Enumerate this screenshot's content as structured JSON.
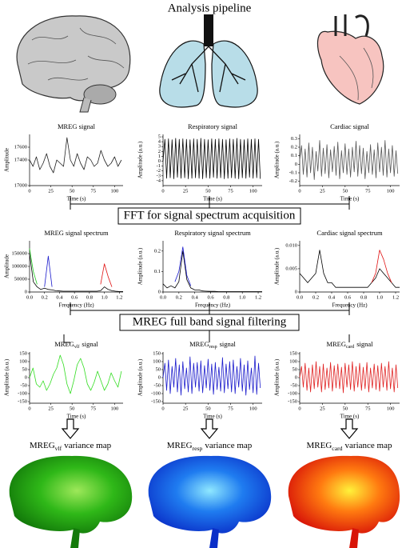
{
  "title": "Analysis pipeline",
  "steps": [
    "FFT for signal spectrum acquisition",
    "MREG full band signal filtering"
  ],
  "maps": [
    {
      "label": [
        "MREG",
        "vlf",
        "variance map"
      ]
    },
    {
      "label": [
        "MREG",
        "resp",
        "variance map"
      ]
    },
    {
      "label": [
        "MREG",
        "card",
        "variance map"
      ]
    }
  ],
  "chart_data": [
    {
      "type": "line",
      "title": "MREG signal",
      "xlabel": "Time (s)",
      "ylabel": "Amplitude",
      "x": [
        0,
        4,
        8,
        12,
        16,
        20,
        24,
        28,
        32,
        36,
        40,
        44,
        48,
        52,
        56,
        60,
        64,
        68,
        72,
        76,
        80,
        84,
        88,
        92,
        96,
        100,
        104,
        108
      ],
      "series": [
        {
          "color": "#222222",
          "values": [
            17400,
            17300,
            17450,
            17250,
            17350,
            17500,
            17300,
            17200,
            17400,
            17350,
            17300,
            17750,
            17400,
            17300,
            17500,
            17350,
            17250,
            17450,
            17400,
            17300,
            17350,
            17550,
            17400,
            17300,
            17350,
            17450,
            17300,
            17400
          ]
        }
      ],
      "xlim": [
        0,
        110
      ],
      "xticks": [
        0,
        25,
        50,
        75,
        100
      ],
      "ylim": [
        17000,
        17800
      ],
      "yticks": [
        17000,
        17400,
        17600
      ]
    },
    {
      "type": "line",
      "title": "Respiratory signal",
      "xlabel": "Time (s)",
      "ylabel": "Amplitude (a.u.)",
      "x": [
        0,
        2,
        4,
        6,
        8,
        10,
        12,
        14,
        16,
        18,
        20,
        22,
        24,
        26,
        28,
        30,
        32,
        34,
        36,
        38,
        40,
        42,
        44,
        46,
        48,
        50,
        52,
        54,
        56,
        58,
        60,
        62,
        64,
        66,
        68,
        70,
        72,
        74,
        76,
        78,
        80,
        82,
        84,
        86,
        88,
        90,
        92,
        94,
        96,
        98,
        100,
        102,
        104,
        106,
        108
      ],
      "series": [
        {
          "color": "#000000",
          "values": [
            0,
            4.5,
            -3.5,
            4.6,
            -3.4,
            4.4,
            -3.6,
            4.7,
            -3.3,
            4.5,
            -3.5,
            4.6,
            -3.4,
            4.5,
            -3.6,
            4.4,
            -3.5,
            4.6,
            -3.4,
            4.5,
            -3.5,
            4.7,
            -3.6,
            4.5,
            -3.4,
            4.4,
            -3.5,
            4.6,
            -3.3,
            4.5,
            -3.5,
            4.6,
            -3.4,
            4.5,
            -3.6,
            4.4,
            -3.5,
            4.6,
            -3.4,
            4.5,
            -3.5,
            4.7,
            -3.6,
            4.5,
            -3.4,
            4.4,
            -3.5,
            4.6,
            -3.3,
            4.5,
            -3.5,
            4.6,
            -3.4,
            4.5,
            -3.6
          ]
        }
      ],
      "xlim": [
        0,
        110
      ],
      "xticks": [
        0,
        25,
        50,
        75,
        100
      ],
      "ylim": [
        -5,
        5.5
      ],
      "yticks": [
        -4,
        -3,
        -2,
        -1,
        0,
        1,
        2,
        3,
        4,
        5
      ]
    },
    {
      "type": "line",
      "title": "Cardiac signal",
      "xlabel": "Time (s)",
      "ylabel": "Amplitude (a.u.)",
      "x": [
        0,
        2,
        4,
        6,
        8,
        10,
        12,
        14,
        16,
        18,
        20,
        22,
        24,
        26,
        28,
        30,
        32,
        34,
        36,
        38,
        40,
        42,
        44,
        46,
        48,
        50,
        52,
        54,
        56,
        58,
        60,
        62,
        64,
        66,
        68,
        70,
        72,
        74,
        76,
        78,
        80,
        82,
        84,
        86,
        88,
        90,
        92,
        94,
        96,
        98,
        100,
        102,
        104,
        106,
        108
      ],
      "series": [
        {
          "color": "#555555",
          "values": [
            0.05,
            0.22,
            -0.12,
            0.18,
            -0.15,
            0.25,
            -0.1,
            0.2,
            -0.18,
            0.15,
            -0.08,
            0.28,
            -0.14,
            0.19,
            -0.11,
            0.23,
            -0.16,
            0.17,
            -0.09,
            0.21,
            -0.13,
            0.26,
            -0.17,
            0.16,
            -0.1,
            0.24,
            -0.12,
            0.18,
            -0.15,
            0.2,
            -0.09,
            0.27,
            -0.14,
            0.22,
            -0.11,
            0.19,
            -0.17,
            0.15,
            -0.1,
            0.23,
            -0.12,
            0.17,
            -0.16,
            0.25,
            -0.09,
            0.2,
            -0.13,
            0.28,
            -0.15,
            0.18,
            -0.1,
            0.22,
            -0.14,
            0.16,
            -0.11
          ]
        }
      ],
      "xlim": [
        0,
        110
      ],
      "xticks": [
        0,
        25,
        50,
        75,
        100
      ],
      "ylim": [
        -0.25,
        0.35
      ],
      "yticks": [
        -0.2,
        -0.1,
        0,
        0.1,
        0.2,
        0.3
      ]
    },
    {
      "type": "line",
      "title": "MREG signal spectrum",
      "xlabel": "Frequency (Hz)",
      "ylabel": "Amplitude",
      "x": [
        0,
        0.05,
        0.1,
        0.15,
        0.2,
        0.25,
        0.3,
        0.35,
        0.4,
        0.45,
        0.5,
        0.55,
        0.6,
        0.65,
        0.7,
        0.75,
        0.8,
        0.85,
        0.9,
        0.95,
        1,
        1.05,
        1.1,
        1.15,
        1.2,
        1.25
      ],
      "series": [
        {
          "color": "#000000",
          "values": [
            150000,
            40000,
            20000,
            10000,
            15000,
            10000,
            8000,
            5000,
            4000,
            3000,
            3000,
            3000,
            3000,
            3000,
            3000,
            3000,
            3000,
            3000,
            3000,
            5000,
            20000,
            10000,
            5000,
            3000,
            2000,
            2000
          ]
        },
        {
          "color": "#22cc22",
          "values": [
            170000,
            80000,
            30000,
            null,
            null,
            null,
            null,
            null,
            null,
            null,
            null,
            null,
            null,
            null,
            null,
            null,
            null,
            null,
            null,
            null,
            null,
            null,
            null,
            null,
            null,
            null
          ]
        },
        {
          "color": "#1a1acc",
          "values": [
            null,
            null,
            null,
            null,
            20000,
            140000,
            20000,
            null,
            null,
            null,
            null,
            null,
            null,
            null,
            null,
            null,
            null,
            null,
            null,
            null,
            null,
            null,
            null,
            null,
            null,
            null
          ]
        },
        {
          "color": "#e01010",
          "values": [
            null,
            null,
            null,
            null,
            null,
            null,
            null,
            null,
            null,
            null,
            null,
            null,
            null,
            null,
            null,
            null,
            null,
            null,
            null,
            30000,
            110000,
            60000,
            20000,
            null,
            null,
            null
          ]
        }
      ],
      "xlim": [
        0,
        1.25
      ],
      "xticks": [
        {
          "value": 0,
          "label": "0.0"
        },
        0.2,
        0.4,
        0.6,
        0.8,
        {
          "value": 1,
          "label": "1.0"
        },
        1.2
      ],
      "ylim": [
        0,
        200000
      ],
      "yticks": [
        0,
        50000,
        100000,
        150000
      ]
    },
    {
      "type": "line",
      "title": "Respiratory signal spectrum",
      "xlabel": "Frequency (Hz)",
      "ylabel": "Amplitude (a.u.)",
      "x": [
        0,
        0.05,
        0.1,
        0.15,
        0.2,
        0.25,
        0.3,
        0.35,
        0.4,
        0.45,
        0.5,
        0.55,
        0.6,
        0.65,
        0.7,
        0.75,
        0.8,
        0.85,
        0.9,
        0.95,
        1,
        1.05,
        1.1,
        1.15,
        1.2,
        1.25
      ],
      "series": [
        {
          "color": "#000000",
          "values": [
            0.04,
            0.02,
            0.03,
            0.02,
            0.05,
            0.2,
            0.06,
            0.02,
            0.01,
            0.01,
            0.005,
            0.004,
            0.003,
            0.003,
            0.002,
            0.002,
            0.002,
            0.002,
            0.002,
            0.002,
            0.002,
            0.002,
            0.002,
            0.002,
            0.002,
            0.002
          ]
        },
        {
          "color": "#1a1acc",
          "values": [
            null,
            null,
            null,
            0.05,
            0.1,
            0.22,
            0.08,
            0.03,
            null,
            null,
            null,
            null,
            null,
            null,
            null,
            null,
            null,
            null,
            null,
            null,
            null,
            null,
            null,
            null,
            null,
            null
          ]
        }
      ],
      "xlim": [
        0,
        1.25
      ],
      "xticks": [
        {
          "value": 0,
          "label": "0.0"
        },
        0.2,
        0.4,
        0.6,
        0.8,
        {
          "value": 1,
          "label": "1.0"
        },
        1.2
      ],
      "ylim": [
        0,
        0.25
      ],
      "yticks": [
        0,
        0.1,
        0.2
      ]
    },
    {
      "type": "line",
      "title": "Cardiac signal spectrum",
      "xlabel": "Frequency (Hz)",
      "ylabel": "Amplitude (a.u.)",
      "x": [
        0,
        0.05,
        0.1,
        0.15,
        0.2,
        0.25,
        0.3,
        0.35,
        0.4,
        0.45,
        0.5,
        0.55,
        0.6,
        0.65,
        0.7,
        0.75,
        0.8,
        0.85,
        0.9,
        0.95,
        1,
        1.05,
        1.1,
        1.15,
        1.2,
        1.25
      ],
      "series": [
        {
          "color": "#000000",
          "values": [
            0.004,
            0.003,
            0.002,
            0.003,
            0.004,
            0.009,
            0.004,
            0.002,
            0.002,
            0.001,
            0.001,
            0.001,
            0.001,
            0.001,
            0.001,
            0.001,
            0.001,
            0.001,
            0.002,
            0.003,
            0.005,
            0.004,
            0.003,
            0.002,
            0.001,
            0.001
          ]
        },
        {
          "color": "#e01010",
          "values": [
            null,
            null,
            null,
            null,
            null,
            null,
            null,
            null,
            null,
            null,
            null,
            null,
            null,
            null,
            null,
            null,
            null,
            null,
            0.002,
            0.004,
            0.009,
            0.007,
            0.004,
            0.002,
            null,
            null
          ]
        }
      ],
      "xlim": [
        0,
        1.25
      ],
      "xticks": [
        {
          "value": 0,
          "label": "0.0"
        },
        0.2,
        0.4,
        0.6,
        0.8,
        {
          "value": 1,
          "label": "1.0"
        },
        1.2
      ],
      "ylim": [
        0,
        0.011
      ],
      "yticks": [
        0,
        0.005,
        {
          "value": 0.01,
          "label": "0.010"
        }
      ]
    },
    {
      "type": "line",
      "title": [
        "MREG",
        "vlf",
        "signal"
      ],
      "xlabel": "Time (s)",
      "ylabel": "Amplitude (a.u.)",
      "x": [
        0,
        4,
        8,
        12,
        16,
        20,
        24,
        28,
        32,
        36,
        40,
        44,
        48,
        52,
        56,
        60,
        64,
        68,
        72,
        76,
        80,
        84,
        88,
        92,
        96,
        100,
        104,
        108
      ],
      "series": [
        {
          "color": "#33dd22",
          "values": [
            0,
            60,
            -40,
            -60,
            -20,
            -80,
            -40,
            20,
            60,
            140,
            80,
            -40,
            -100,
            -20,
            80,
            120,
            60,
            -40,
            -80,
            -30,
            40,
            -20,
            -80,
            -40,
            30,
            -20,
            -60,
            40
          ]
        }
      ],
      "xlim": [
        0,
        110
      ],
      "xticks": [
        0,
        25,
        50,
        75,
        100
      ],
      "ylim": [
        -160,
        160
      ],
      "yticks": [
        -150,
        -100,
        -50,
        0,
        50,
        100,
        150
      ]
    },
    {
      "type": "line",
      "title": [
        "MREG",
        "resp",
        "signal"
      ],
      "xlabel": "Time (s)",
      "ylabel": "Amplitude (a.u.)",
      "x": [
        0,
        2,
        4,
        6,
        8,
        10,
        12,
        14,
        16,
        18,
        20,
        22,
        24,
        26,
        28,
        30,
        32,
        34,
        36,
        38,
        40,
        42,
        44,
        46,
        48,
        50,
        52,
        54,
        56,
        58,
        60,
        62,
        64,
        66,
        68,
        70,
        72,
        74,
        76,
        78,
        80,
        82,
        84,
        86,
        88,
        90,
        92,
        94,
        96,
        98,
        100,
        102,
        104,
        106,
        108
      ],
      "series": [
        {
          "color": "#1a1acc",
          "values": [
            0,
            90,
            -80,
            110,
            -100,
            70,
            -60,
            120,
            -90,
            80,
            -110,
            100,
            -70,
            60,
            -90,
            130,
            -100,
            90,
            -60,
            95,
            -85,
            105,
            -95,
            75,
            -65,
            115,
            -80,
            85,
            -105,
            95,
            -75,
            65,
            -85,
            125,
            -95,
            85,
            -70,
            100,
            -90,
            110,
            -100,
            70,
            -60,
            120,
            -85,
            80,
            -110,
            105,
            -75,
            60,
            -95,
            135,
            -105,
            90,
            -65
          ]
        }
      ],
      "xlim": [
        0,
        110
      ],
      "xticks": [
        0,
        25,
        50,
        75,
        100
      ],
      "ylim": [
        -160,
        160
      ],
      "yticks": [
        -150,
        -100,
        -50,
        0,
        50,
        100,
        150
      ]
    },
    {
      "type": "line",
      "title": [
        "MREG",
        "card",
        "signal"
      ],
      "xlabel": "Time (s)",
      "ylabel": "Amplitude (a.u.)",
      "x": [
        0,
        2,
        4,
        6,
        8,
        10,
        12,
        14,
        16,
        18,
        20,
        22,
        24,
        26,
        28,
        30,
        32,
        34,
        36,
        38,
        40,
        42,
        44,
        46,
        48,
        50,
        52,
        54,
        56,
        58,
        60,
        62,
        64,
        66,
        68,
        70,
        72,
        74,
        76,
        78,
        80,
        82,
        84,
        86,
        88,
        90,
        92,
        94,
        96,
        98,
        100,
        102,
        104,
        106,
        108
      ],
      "series": [
        {
          "color": "#e02020",
          "values": [
            0,
            70,
            -60,
            90,
            -80,
            60,
            -90,
            80,
            -70,
            100,
            -60,
            70,
            -90,
            85,
            -75,
            60,
            -65,
            95,
            -85,
            75,
            -65,
            85,
            -70,
            65,
            -95,
            90,
            -60,
            80,
            -75,
            100,
            -85,
            70,
            -60,
            90,
            -80,
            65,
            -70,
            95,
            -90,
            60,
            -65,
            85,
            -75,
            75,
            -85,
            90,
            -60,
            70,
            -80,
            100,
            -70,
            60,
            -90,
            80,
            -65
          ]
        }
      ],
      "xlim": [
        0,
        110
      ],
      "xticks": [
        0,
        25,
        50,
        75,
        100
      ],
      "ylim": [
        -160,
        160
      ],
      "yticks": [
        -150,
        -100,
        -50,
        0,
        50,
        100,
        150
      ]
    }
  ]
}
